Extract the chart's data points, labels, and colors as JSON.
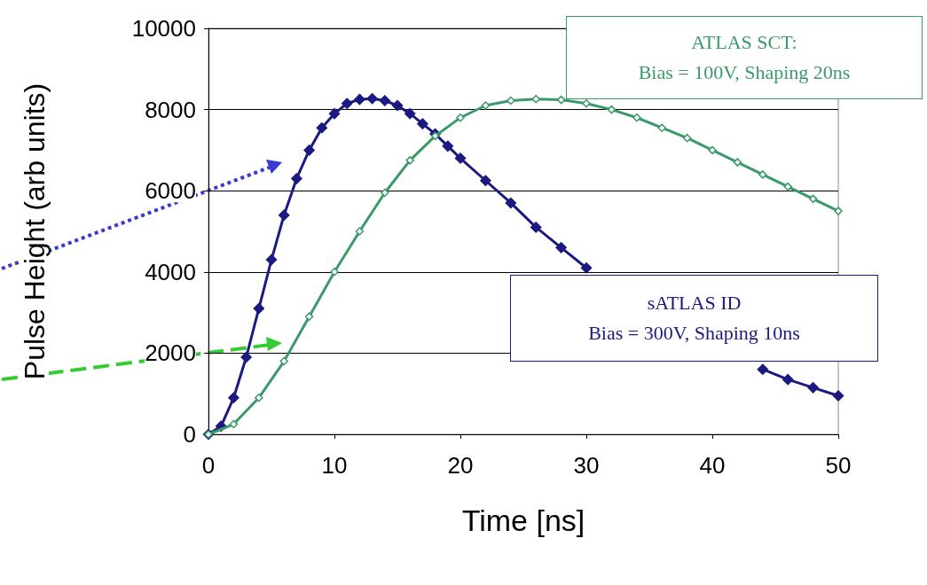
{
  "chart_data": {
    "type": "line",
    "xlabel": "Time [ns]",
    "ylabel": "Pulse Height (arb units)",
    "xlim": [
      0,
      50
    ],
    "xticks": [
      0,
      10,
      20,
      30,
      40,
      50
    ],
    "ylim": [
      0,
      10000
    ],
    "yticks": [
      0,
      2000,
      4000,
      6000,
      8000,
      10000
    ],
    "grid": "y",
    "marker": "diamond",
    "series": [
      {
        "color": "#1a1a80",
        "x": [
          0,
          1,
          2,
          3,
          4,
          5,
          6,
          7,
          8,
          9,
          10,
          11,
          12,
          13,
          14,
          15,
          16,
          17,
          18,
          19,
          20,
          22,
          24,
          26,
          28,
          30,
          32,
          34,
          36,
          38,
          40,
          42,
          44,
          46,
          48,
          50
        ],
        "values": [
          0,
          200,
          900,
          1900,
          3100,
          4300,
          5400,
          6300,
          7000,
          7550,
          7900,
          8150,
          8250,
          8270,
          8220,
          8100,
          7900,
          7650,
          7400,
          7100,
          6800,
          6250,
          5700,
          5100,
          4600,
          4100,
          null,
          null,
          null,
          null,
          null,
          null,
          1600,
          1350,
          1150,
          950
        ]
      },
      {
        "color": "#3a9a6a",
        "x": [
          0,
          2,
          4,
          6,
          8,
          10,
          12,
          14,
          16,
          18,
          20,
          22,
          24,
          26,
          28,
          30,
          32,
          34,
          36,
          38,
          40,
          42,
          44,
          46,
          48,
          50
        ],
        "values": [
          0,
          250,
          900,
          1800,
          2900,
          4000,
          5000,
          5950,
          6750,
          7350,
          7800,
          8100,
          8220,
          8260,
          8240,
          8150,
          8000,
          7800,
          7550,
          7300,
          7000,
          6700,
          6400,
          6100,
          5800,
          5500
        ]
      }
    ],
    "annotations": [
      "sATLAS ID\nBias = 300V, Shaping 10ns",
      "ATLAS SCT:\nBias = 100V, Shaping 20ns"
    ]
  }
}
